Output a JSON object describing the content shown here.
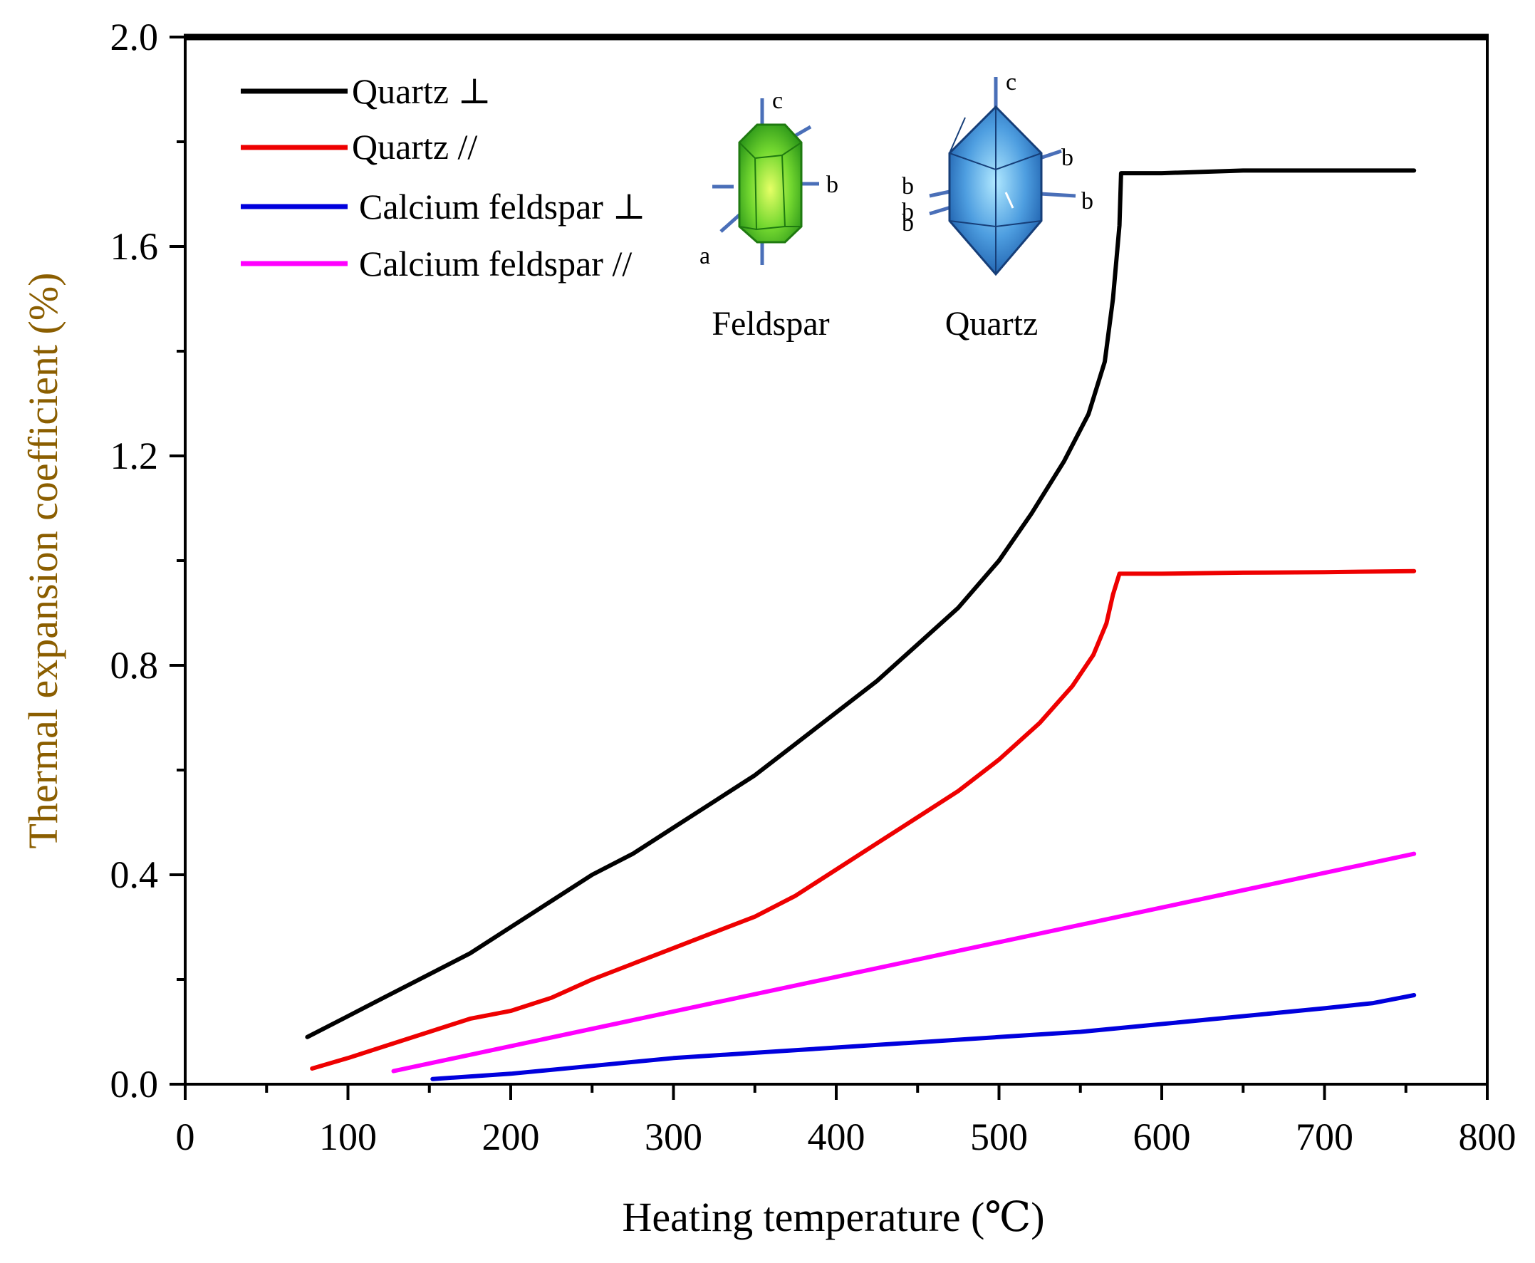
{
  "chart_data": {
    "type": "line",
    "title": "",
    "xlabel": "Heating temperature (℃)",
    "ylabel": "Thermal expansion coefficient (%)",
    "xlim": [
      0,
      800
    ],
    "ylim": [
      0,
      2.0
    ],
    "xticks": [
      0,
      100,
      200,
      300,
      400,
      500,
      600,
      700,
      800
    ],
    "yticks": [
      0.0,
      0.4,
      0.8,
      1.2,
      1.6,
      2.0
    ],
    "xtick_labels": [
      "0",
      "100",
      "200",
      "300",
      "400",
      "500",
      "600",
      "700",
      "800"
    ],
    "ytick_labels": [
      "0.0",
      "0.4",
      "0.8",
      "1.2",
      "1.6",
      "2.0"
    ],
    "grid": false,
    "legend_position": "top-left",
    "series": [
      {
        "name": "Quartz ⊥",
        "color": "#000000",
        "points": [
          [
            75,
            0.09
          ],
          [
            100,
            0.13
          ],
          [
            125,
            0.17
          ],
          [
            150,
            0.21
          ],
          [
            175,
            0.25
          ],
          [
            200,
            0.3
          ],
          [
            225,
            0.35
          ],
          [
            250,
            0.4
          ],
          [
            275,
            0.44
          ],
          [
            300,
            0.49
          ],
          [
            325,
            0.54
          ],
          [
            350,
            0.59
          ],
          [
            375,
            0.65
          ],
          [
            400,
            0.71
          ],
          [
            425,
            0.77
          ],
          [
            450,
            0.84
          ],
          [
            475,
            0.91
          ],
          [
            500,
            1.0
          ],
          [
            520,
            1.09
          ],
          [
            540,
            1.19
          ],
          [
            555,
            1.28
          ],
          [
            565,
            1.38
          ],
          [
            570,
            1.5
          ],
          [
            574,
            1.64
          ],
          [
            575,
            1.74
          ],
          [
            600,
            1.74
          ],
          [
            650,
            1.745
          ],
          [
            700,
            1.745
          ],
          [
            755,
            1.745
          ]
        ]
      },
      {
        "name": "Quartz //",
        "color": "#ee0000",
        "points": [
          [
            78,
            0.03
          ],
          [
            100,
            0.05
          ],
          [
            125,
            0.075
          ],
          [
            150,
            0.1
          ],
          [
            175,
            0.125
          ],
          [
            200,
            0.14
          ],
          [
            225,
            0.165
          ],
          [
            250,
            0.2
          ],
          [
            275,
            0.23
          ],
          [
            300,
            0.26
          ],
          [
            325,
            0.29
          ],
          [
            350,
            0.32
          ],
          [
            375,
            0.36
          ],
          [
            400,
            0.41
          ],
          [
            425,
            0.46
          ],
          [
            450,
            0.51
          ],
          [
            475,
            0.56
          ],
          [
            500,
            0.62
          ],
          [
            525,
            0.69
          ],
          [
            545,
            0.76
          ],
          [
            558,
            0.82
          ],
          [
            566,
            0.88
          ],
          [
            570,
            0.935
          ],
          [
            574,
            0.975
          ],
          [
            600,
            0.975
          ],
          [
            650,
            0.977
          ],
          [
            700,
            0.978
          ],
          [
            755,
            0.98
          ]
        ]
      },
      {
        "name": "Calcium feldspar ⊥",
        "color": "#0000dd",
        "points": [
          [
            152,
            0.01
          ],
          [
            200,
            0.02
          ],
          [
            250,
            0.035
          ],
          [
            300,
            0.05
          ],
          [
            350,
            0.06
          ],
          [
            400,
            0.07
          ],
          [
            450,
            0.08
          ],
          [
            500,
            0.09
          ],
          [
            550,
            0.1
          ],
          [
            600,
            0.115
          ],
          [
            650,
            0.13
          ],
          [
            700,
            0.145
          ],
          [
            730,
            0.155
          ],
          [
            755,
            0.17
          ]
        ]
      },
      {
        "name": "Calcium feldspar //",
        "color": "#ff00ff",
        "points": [
          [
            128,
            0.025
          ],
          [
            755,
            0.44
          ]
        ]
      }
    ],
    "inset": {
      "feldspar_label": "Feldspar",
      "quartz_label": "Quartz",
      "feldspar_axes": [
        "c",
        "b",
        "a"
      ],
      "quartz_axes": [
        "c",
        "b",
        "b",
        "b",
        "b",
        "b"
      ]
    }
  }
}
